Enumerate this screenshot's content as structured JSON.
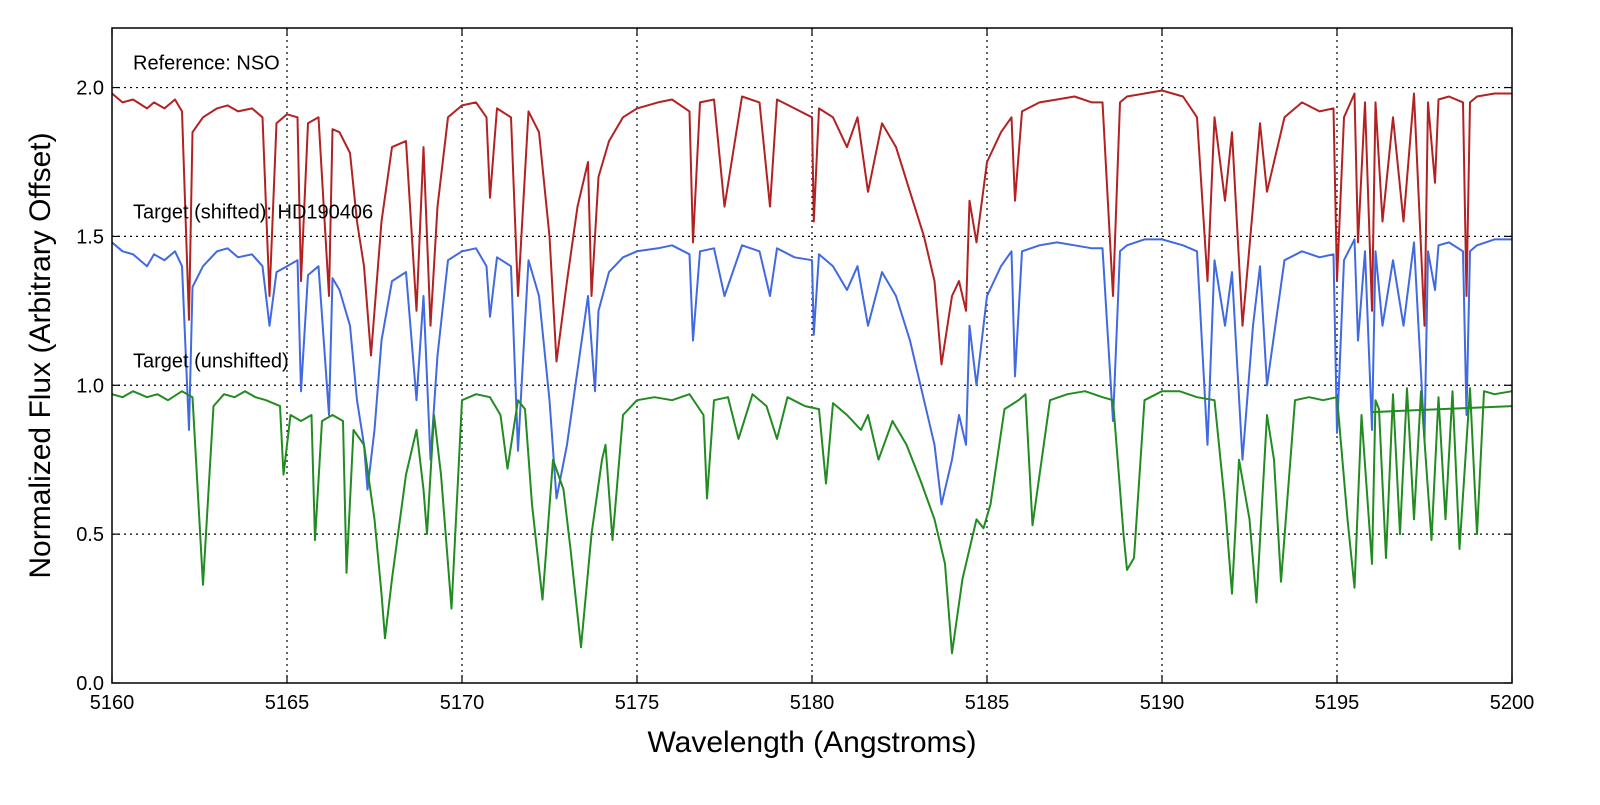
{
  "chart_data": {
    "type": "line",
    "xlabel": "Wavelength (Angstroms)",
    "ylabel": "Normalized Flux (Arbitrary Offset)",
    "xlim": [
      5160,
      5200
    ],
    "ylim": [
      0.0,
      2.2
    ],
    "xticks": [
      5160,
      5165,
      5170,
      5175,
      5180,
      5185,
      5190,
      5195,
      5200
    ],
    "yticks": [
      0.0,
      0.5,
      1.0,
      1.5,
      2.0
    ],
    "xtick_labels": [
      "5160",
      "5165",
      "5170",
      "5175",
      "5180",
      "5185",
      "5190",
      "5195",
      "5200"
    ],
    "ytick_labels": [
      "0.0",
      "0.5",
      "1.0",
      "1.5",
      "2.0"
    ],
    "grid": true,
    "legend": "none",
    "annotations": [
      {
        "text": "Reference: NSO",
        "x": 5160.6,
        "y": 2.06
      },
      {
        "text": "Target (shifted): HD190406",
        "x": 5160.6,
        "y": 1.56
      },
      {
        "text": "Target (unshifted)",
        "x": 5160.6,
        "y": 1.06
      }
    ],
    "colors": {
      "Reference": "#b22222",
      "Target (shifted)": "#4169e1",
      "Target (unshifted)": "#228b22"
    },
    "series": [
      {
        "color": "#b22222",
        "x": [
          5160.0,
          5160.3,
          5160.6,
          5161.0,
          5161.2,
          5161.5,
          5161.8,
          5162.0,
          5162.2,
          5162.3,
          5162.6,
          5163.0,
          5163.3,
          5163.6,
          5164.0,
          5164.3,
          5164.5,
          5164.7,
          5165.0,
          5165.3,
          5165.4,
          5165.6,
          5165.9,
          5166.2,
          5166.3,
          5166.5,
          5166.8,
          5167.0,
          5167.2,
          5167.4,
          5167.5,
          5167.7,
          5168.0,
          5168.4,
          5168.7,
          5168.9,
          5169.1,
          5169.3,
          5169.6,
          5170.0,
          5170.4,
          5170.7,
          5170.8,
          5171.0,
          5171.4,
          5171.6,
          5171.9,
          5172.2,
          5172.5,
          5172.7,
          5173.0,
          5173.3,
          5173.6,
          5173.7,
          5173.9,
          5174.2,
          5174.6,
          5175.0,
          5175.6,
          5176.0,
          5176.5,
          5176.6,
          5176.8,
          5177.2,
          5177.5,
          5178.0,
          5178.5,
          5178.8,
          5179.0,
          5179.5,
          5180.0,
          5180.05,
          5180.2,
          5180.6,
          5181.0,
          5181.3,
          5181.6,
          5182.0,
          5182.4,
          5182.8,
          5183.2,
          5183.5,
          5183.7,
          5184.0,
          5184.2,
          5184.4,
          5184.5,
          5184.7,
          5185.0,
          5185.4,
          5185.7,
          5185.8,
          5186.0,
          5186.5,
          5187.0,
          5187.5,
          5188.0,
          5188.3,
          5188.6,
          5188.8,
          5189.0,
          5189.5,
          5190.0,
          5190.6,
          5191.0,
          5191.3,
          5191.5,
          5191.8,
          5192.0,
          5192.3,
          5192.6,
          5192.8,
          5193.0,
          5193.5,
          5194.0,
          5194.5,
          5194.9,
          5195.0,
          5195.2,
          5195.5,
          5195.6,
          5195.8,
          5196.0,
          5196.1,
          5196.3,
          5196.6,
          5196.9,
          5197.2,
          5197.5,
          5197.6,
          5197.8,
          5197.9,
          5198.2,
          5198.6,
          5198.7,
          5198.8,
          5199.0,
          5199.5,
          5200.0
        ],
        "y": [
          1.98,
          1.95,
          1.96,
          1.93,
          1.95,
          1.93,
          1.96,
          1.92,
          1.22,
          1.85,
          1.9,
          1.93,
          1.94,
          1.92,
          1.93,
          1.9,
          1.3,
          1.88,
          1.91,
          1.9,
          1.35,
          1.88,
          1.9,
          1.3,
          1.86,
          1.85,
          1.78,
          1.55,
          1.4,
          1.1,
          1.25,
          1.55,
          1.8,
          1.82,
          1.25,
          1.8,
          1.2,
          1.6,
          1.9,
          1.94,
          1.95,
          1.9,
          1.63,
          1.93,
          1.9,
          1.3,
          1.92,
          1.85,
          1.5,
          1.08,
          1.35,
          1.6,
          1.75,
          1.3,
          1.7,
          1.82,
          1.9,
          1.93,
          1.95,
          1.96,
          1.92,
          1.48,
          1.95,
          1.96,
          1.6,
          1.97,
          1.95,
          1.6,
          1.96,
          1.93,
          1.9,
          1.55,
          1.93,
          1.9,
          1.8,
          1.9,
          1.65,
          1.88,
          1.8,
          1.65,
          1.5,
          1.35,
          1.07,
          1.3,
          1.35,
          1.25,
          1.62,
          1.48,
          1.75,
          1.85,
          1.9,
          1.62,
          1.92,
          1.95,
          1.96,
          1.97,
          1.95,
          1.95,
          1.3,
          1.95,
          1.97,
          1.98,
          1.99,
          1.97,
          1.9,
          1.35,
          1.9,
          1.62,
          1.85,
          1.2,
          1.6,
          1.88,
          1.65,
          1.9,
          1.95,
          1.92,
          1.93,
          1.35,
          1.9,
          1.98,
          1.48,
          1.95,
          1.25,
          1.95,
          1.55,
          1.9,
          1.55,
          1.98,
          1.2,
          1.95,
          1.68,
          1.96,
          1.97,
          1.95,
          1.3,
          1.95,
          1.97,
          1.98,
          1.98
        ]
      },
      {
        "color": "#4169e1",
        "x": [
          5160.0,
          5160.3,
          5160.6,
          5161.0,
          5161.2,
          5161.5,
          5161.8,
          5162.0,
          5162.2,
          5162.3,
          5162.6,
          5163.0,
          5163.3,
          5163.6,
          5164.0,
          5164.3,
          5164.5,
          5164.7,
          5165.0,
          5165.3,
          5165.4,
          5165.6,
          5165.9,
          5166.2,
          5166.3,
          5166.5,
          5166.8,
          5167.0,
          5167.2,
          5167.3,
          5167.5,
          5167.7,
          5168.0,
          5168.4,
          5168.7,
          5168.9,
          5169.1,
          5169.3,
          5169.6,
          5170.0,
          5170.4,
          5170.7,
          5170.8,
          5171.0,
          5171.4,
          5171.6,
          5171.9,
          5172.2,
          5172.5,
          5172.7,
          5173.0,
          5173.3,
          5173.6,
          5173.8,
          5173.9,
          5174.2,
          5174.6,
          5175.0,
          5175.6,
          5176.0,
          5176.5,
          5176.6,
          5176.8,
          5177.2,
          5177.5,
          5178.0,
          5178.5,
          5178.8,
          5179.0,
          5179.5,
          5180.0,
          5180.05,
          5180.2,
          5180.6,
          5181.0,
          5181.3,
          5181.6,
          5182.0,
          5182.4,
          5182.8,
          5183.2,
          5183.5,
          5183.7,
          5184.0,
          5184.2,
          5184.4,
          5184.5,
          5184.7,
          5185.0,
          5185.4,
          5185.7,
          5185.8,
          5186.0,
          5186.5,
          5187.0,
          5187.5,
          5188.0,
          5188.3,
          5188.6,
          5188.8,
          5189.0,
          5189.5,
          5190.0,
          5190.6,
          5191.0,
          5191.3,
          5191.5,
          5191.8,
          5192.0,
          5192.3,
          5192.6,
          5192.8,
          5193.0,
          5193.5,
          5194.0,
          5194.5,
          5194.9,
          5195.0,
          5195.2,
          5195.5,
          5195.6,
          5195.8,
          5196.0,
          5196.1,
          5196.3,
          5196.6,
          5196.9,
          5197.2,
          5197.5,
          5197.6,
          5197.8,
          5197.9,
          5198.2,
          5198.6,
          5198.7,
          5198.8,
          5199.0,
          5199.5,
          5200.0
        ],
        "y": [
          1.48,
          1.45,
          1.44,
          1.4,
          1.44,
          1.42,
          1.45,
          1.4,
          0.85,
          1.33,
          1.4,
          1.45,
          1.46,
          1.43,
          1.44,
          1.4,
          1.2,
          1.38,
          1.4,
          1.42,
          0.98,
          1.37,
          1.4,
          0.9,
          1.36,
          1.32,
          1.2,
          0.95,
          0.8,
          0.65,
          0.85,
          1.15,
          1.35,
          1.38,
          0.95,
          1.3,
          0.75,
          1.1,
          1.42,
          1.45,
          1.46,
          1.4,
          1.23,
          1.43,
          1.4,
          0.78,
          1.42,
          1.3,
          0.95,
          0.62,
          0.8,
          1.05,
          1.3,
          0.98,
          1.25,
          1.38,
          1.43,
          1.45,
          1.46,
          1.47,
          1.44,
          1.15,
          1.45,
          1.46,
          1.3,
          1.47,
          1.45,
          1.3,
          1.46,
          1.43,
          1.42,
          1.17,
          1.44,
          1.4,
          1.32,
          1.4,
          1.2,
          1.38,
          1.3,
          1.15,
          0.95,
          0.8,
          0.6,
          0.75,
          0.9,
          0.8,
          1.2,
          1.0,
          1.3,
          1.4,
          1.45,
          1.03,
          1.45,
          1.47,
          1.48,
          1.47,
          1.46,
          1.46,
          0.88,
          1.45,
          1.47,
          1.49,
          1.49,
          1.47,
          1.45,
          0.8,
          1.42,
          1.2,
          1.38,
          0.75,
          1.2,
          1.4,
          1.0,
          1.42,
          1.45,
          1.43,
          1.44,
          0.84,
          1.42,
          1.49,
          1.15,
          1.45,
          0.85,
          1.45,
          1.2,
          1.42,
          1.2,
          1.48,
          0.82,
          1.45,
          1.32,
          1.47,
          1.48,
          1.45,
          0.9,
          1.45,
          1.47,
          1.49,
          1.49
        ]
      },
      {
        "color": "#228b22",
        "x": [
          5160.0,
          5160.3,
          5160.6,
          5161.0,
          5161.3,
          5161.6,
          5162.0,
          5162.3,
          5162.6,
          5162.9,
          5163.2,
          5163.5,
          5163.8,
          5164.1,
          5164.4,
          5164.8,
          5164.9,
          5165.1,
          5165.4,
          5165.7,
          5165.8,
          5166.0,
          5166.3,
          5166.6,
          5166.7,
          5166.9,
          5167.2,
          5167.5,
          5167.7,
          5167.8,
          5168.0,
          5168.4,
          5168.7,
          5168.9,
          5169.0,
          5169.2,
          5169.4,
          5169.7,
          5170.0,
          5170.4,
          5170.8,
          5171.1,
          5171.3,
          5171.6,
          5171.8,
          5172.0,
          5172.3,
          5172.6,
          5172.9,
          5173.1,
          5173.4,
          5173.7,
          5174.0,
          5174.1,
          5174.3,
          5174.6,
          5175.0,
          5175.5,
          5176.0,
          5176.5,
          5176.9,
          5177.0,
          5177.2,
          5177.6,
          5177.9,
          5178.3,
          5178.7,
          5179.0,
          5179.3,
          5179.8,
          5180.2,
          5180.4,
          5180.6,
          5181.0,
          5181.4,
          5181.6,
          5181.9,
          5182.3,
          5182.7,
          5183.1,
          5183.5,
          5183.8,
          5184.0,
          5184.3,
          5184.6,
          5184.7,
          5184.9,
          5185.1,
          5185.5,
          5185.9,
          5186.1,
          5186.3,
          5186.8,
          5187.3,
          5187.8,
          5188.3,
          5188.6,
          5188.9,
          5189.0,
          5189.2,
          5189.5,
          5190.0,
          5190.5,
          5191.0,
          5191.5,
          5191.8,
          5192.0,
          5192.2,
          5192.5,
          5192.7,
          5193.0,
          5193.2,
          5193.4,
          5193.8,
          5194.2,
          5194.6,
          5195.0,
          5195.3,
          5195.5,
          5195.7,
          5196.0,
          5196.1,
          5196.2,
          5196.4,
          5196.6,
          5196.8,
          5197.0,
          5197.2,
          5197.4,
          5197.7,
          5197.9,
          5198.1,
          5198.3,
          5198.5,
          5198.8,
          5199.0,
          5199.2,
          5199.5,
          5200.0
        ],
        "y": [
          0.97,
          0.96,
          0.98,
          0.96,
          0.97,
          0.95,
          0.98,
          0.96,
          0.33,
          0.93,
          0.97,
          0.96,
          0.98,
          0.96,
          0.95,
          0.93,
          0.7,
          0.9,
          0.88,
          0.9,
          0.48,
          0.88,
          0.9,
          0.88,
          0.37,
          0.85,
          0.8,
          0.55,
          0.3,
          0.15,
          0.35,
          0.7,
          0.85,
          0.65,
          0.5,
          0.9,
          0.7,
          0.25,
          0.95,
          0.97,
          0.96,
          0.9,
          0.72,
          0.95,
          0.92,
          0.6,
          0.28,
          0.75,
          0.65,
          0.45,
          0.12,
          0.5,
          0.75,
          0.8,
          0.48,
          0.9,
          0.95,
          0.96,
          0.95,
          0.97,
          0.9,
          0.62,
          0.95,
          0.96,
          0.82,
          0.97,
          0.93,
          0.82,
          0.96,
          0.93,
          0.92,
          0.67,
          0.94,
          0.9,
          0.85,
          0.9,
          0.75,
          0.88,
          0.8,
          0.68,
          0.55,
          0.4,
          0.1,
          0.35,
          0.5,
          0.55,
          0.52,
          0.6,
          0.92,
          0.95,
          0.97,
          0.53,
          0.95,
          0.97,
          0.98,
          0.96,
          0.95,
          0.5,
          0.38,
          0.42,
          0.95,
          0.98,
          0.98,
          0.96,
          0.95,
          0.6,
          0.3,
          0.75,
          0.55,
          0.27,
          0.9,
          0.75,
          0.34,
          0.95,
          0.96,
          0.95,
          0.96,
          0.55,
          0.32,
          0.9,
          0.4,
          0.95,
          0.92,
          0.42,
          0.97,
          0.5,
          0.99,
          0.55,
          0.98,
          0.48,
          0.96,
          0.55,
          0.98,
          0.45,
          0.99,
          0.5,
          0.98,
          0.97,
          0.98
        ]
      },
      {
        "color": "#228b22",
        "x": [
          5196.0,
          5200.0
        ],
        "y": [
          0.91,
          0.93
        ]
      }
    ]
  }
}
